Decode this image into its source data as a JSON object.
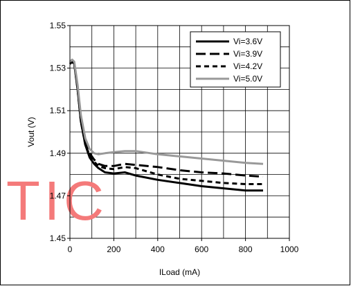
{
  "chart_data": {
    "type": "line",
    "title": "",
    "xlabel": "ILoad (mA)",
    "ylabel": "Vout (V)",
    "xlim": [
      0,
      1000
    ],
    "ylim": [
      1.45,
      1.55
    ],
    "x_ticks": [
      0,
      200,
      400,
      600,
      800,
      1000
    ],
    "y_ticks": [
      1.45,
      1.47,
      1.49,
      1.51,
      1.53,
      1.55
    ],
    "x_tick_labels": [
      "0",
      "200",
      "400",
      "600",
      "800",
      "1000"
    ],
    "y_tick_labels": [
      "1.45",
      "1.47",
      "1.49",
      "1.51",
      "1.53",
      "1.55"
    ],
    "grid": true,
    "legend_position": "top-right",
    "series": [
      {
        "name": "Vi=3.6V",
        "color": "#000000",
        "dash": "solid",
        "x": [
          0,
          10,
          20,
          35,
          50,
          70,
          90,
          110,
          130,
          160,
          200,
          250,
          300,
          400,
          500,
          600,
          700,
          800,
          880
        ],
        "y": [
          1.532,
          1.533,
          1.532,
          1.52,
          1.505,
          1.494,
          1.488,
          1.485,
          1.483,
          1.481,
          1.4805,
          1.481,
          1.4795,
          1.4775,
          1.476,
          1.4745,
          1.4735,
          1.4725,
          1.4725
        ]
      },
      {
        "name": "Vi=3.9V",
        "color": "#000000",
        "dash": "longdash",
        "x": [
          0,
          10,
          20,
          35,
          50,
          70,
          90,
          110,
          130,
          160,
          200,
          250,
          300,
          400,
          500,
          600,
          700,
          800,
          880
        ],
        "y": [
          1.532,
          1.533,
          1.532,
          1.521,
          1.506,
          1.495,
          1.49,
          1.487,
          1.485,
          1.484,
          1.484,
          1.485,
          1.4845,
          1.4835,
          1.482,
          1.481,
          1.4805,
          1.4795,
          1.479
        ]
      },
      {
        "name": "Vi=4.2V",
        "color": "#000000",
        "dash": "dash",
        "x": [
          0,
          10,
          20,
          35,
          50,
          70,
          90,
          110,
          130,
          160,
          200,
          250,
          300,
          400,
          500,
          600,
          700,
          800,
          880
        ],
        "y": [
          1.532,
          1.533,
          1.532,
          1.52,
          1.505,
          1.494,
          1.489,
          1.486,
          1.484,
          1.483,
          1.4825,
          1.4835,
          1.483,
          1.48,
          1.478,
          1.477,
          1.476,
          1.4755,
          1.4755
        ]
      },
      {
        "name": "Vi=5.0V",
        "color": "#999999",
        "dash": "solid",
        "x": [
          0,
          10,
          20,
          35,
          50,
          70,
          90,
          110,
          130,
          160,
          200,
          250,
          300,
          400,
          500,
          600,
          700,
          800,
          880
        ],
        "y": [
          1.533,
          1.534,
          1.533,
          1.522,
          1.508,
          1.497,
          1.492,
          1.49,
          1.4895,
          1.49,
          1.4905,
          1.491,
          1.491,
          1.4895,
          1.4885,
          1.4875,
          1.4865,
          1.4855,
          1.485
        ]
      }
    ]
  },
  "watermark": {
    "text": "TIC"
  }
}
